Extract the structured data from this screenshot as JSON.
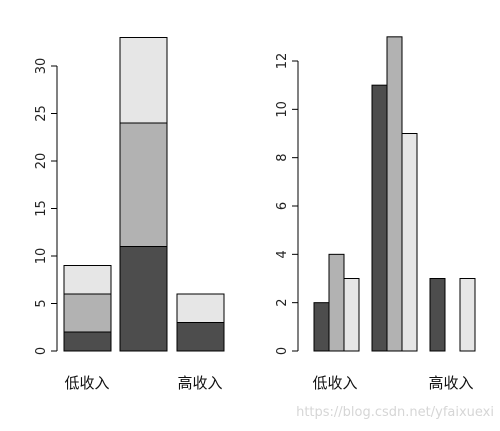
{
  "chart_data": [
    {
      "type": "bar",
      "mode": "stacked",
      "categories": [
        "低收入",
        "",
        "高收入"
      ],
      "series": [
        {
          "values": [
            2,
            11,
            3
          ],
          "color": "#4d4d4d"
        },
        {
          "values": [
            4,
            13,
            0
          ],
          "color": "#b2b2b2"
        },
        {
          "values": [
            3,
            9,
            3
          ],
          "color": "#e6e6e6"
        }
      ],
      "ylim": [
        0,
        33
      ],
      "yticks": [
        0,
        5,
        10,
        15,
        20,
        25,
        30
      ],
      "title": "",
      "xlabel": "",
      "ylabel": "",
      "grid": false
    },
    {
      "type": "bar",
      "mode": "grouped",
      "categories": [
        "低收入",
        "",
        "高收入"
      ],
      "series": [
        {
          "values": [
            2,
            11,
            3
          ],
          "color": "#4d4d4d"
        },
        {
          "values": [
            4,
            13,
            0
          ],
          "color": "#b2b2b2"
        },
        {
          "values": [
            3,
            9,
            3
          ],
          "color": "#e6e6e6"
        }
      ],
      "ylim": [
        0,
        13
      ],
      "yticks": [
        0,
        2,
        4,
        6,
        8,
        10,
        12
      ],
      "title": "",
      "xlabel": "",
      "ylabel": "",
      "grid": false
    }
  ],
  "watermark": "https://blog.csdn.net/yfaixuexi"
}
